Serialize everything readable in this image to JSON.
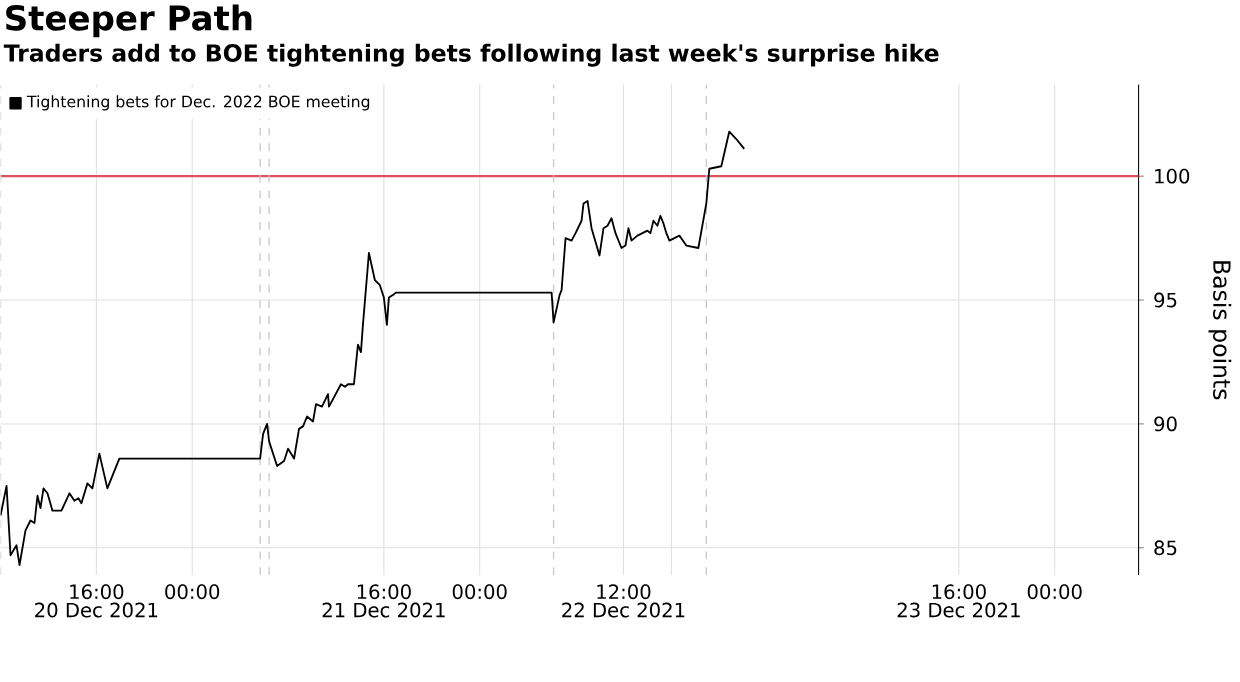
{
  "chart_data": {
    "type": "line",
    "title": "Steeper Path",
    "subtitle": "Traders add to BOE tightening bets following last week's surprise hike",
    "ylabel": "Basis points",
    "series": [
      {
        "name": "Tightening bets for Dec. 2022 BOE meeting",
        "color": "#000000",
        "x": [
          "2021-12-20T08:00",
          "2021-12-20T08:30",
          "2021-12-20T08:50",
          "2021-12-20T09:20",
          "2021-12-20T09:35",
          "2021-12-20T10:05",
          "2021-12-20T10:30",
          "2021-12-20T10:50",
          "2021-12-20T11:05",
          "2021-12-20T11:20",
          "2021-12-20T11:35",
          "2021-12-20T11:55",
          "2021-12-20T12:20",
          "2021-12-20T13:05",
          "2021-12-20T13:45",
          "2021-12-20T14:10",
          "2021-12-20T14:30",
          "2021-12-20T14:45",
          "2021-12-20T15:15",
          "2021-12-20T15:40",
          "2021-12-20T16:15",
          "2021-12-20T16:55",
          "2021-12-20T17:55",
          "2021-12-21T05:40",
          "2021-12-21T05:55",
          "2021-12-21T06:15",
          "2021-12-21T06:25",
          "2021-12-21T07:05",
          "2021-12-21T07:40",
          "2021-12-21T08:00",
          "2021-12-21T08:30",
          "2021-12-21T08:55",
          "2021-12-21T09:15",
          "2021-12-21T09:35",
          "2021-12-21T10:05",
          "2021-12-21T10:20",
          "2021-12-21T10:50",
          "2021-12-21T11:20",
          "2021-12-21T11:25",
          "2021-12-21T12:25",
          "2021-12-21T12:45",
          "2021-12-21T13:00",
          "2021-12-21T13:30",
          "2021-12-21T13:50",
          "2021-12-21T14:05",
          "2021-12-21T14:15",
          "2021-12-21T14:45",
          "2021-12-21T15:15",
          "2021-12-21T15:40",
          "2021-12-21T16:00",
          "2021-12-21T16:15",
          "2021-12-21T16:25",
          "2021-12-21T16:45",
          "2021-12-21T17:00",
          "2021-12-22T06:00",
          "2021-12-22T06:10",
          "2021-12-22T06:40",
          "2021-12-22T06:50",
          "2021-12-22T07:10",
          "2021-12-22T07:40",
          "2021-12-22T08:00",
          "2021-12-22T08:30",
          "2021-12-22T08:40",
          "2021-12-22T09:00",
          "2021-12-22T09:20",
          "2021-12-22T10:00",
          "2021-12-22T10:20",
          "2021-12-22T10:40",
          "2021-12-22T11:00",
          "2021-12-22T11:20",
          "2021-12-22T11:50",
          "2021-12-22T12:10",
          "2021-12-22T12:25",
          "2021-12-22T12:40",
          "2021-12-22T13:10",
          "2021-12-22T13:35",
          "2021-12-22T14:00",
          "2021-12-22T14:15",
          "2021-12-22T14:30",
          "2021-12-22T14:50",
          "2021-12-22T15:05",
          "2021-12-22T15:20",
          "2021-12-22T15:35",
          "2021-12-22T15:50",
          "2021-12-22T16:40",
          "2021-12-22T17:15",
          "2021-12-22T18:15",
          "2021-12-22T18:55",
          "2021-12-22T19:10",
          "2021-12-22T20:10",
          "2021-12-22T20:50",
          "2021-12-22T21:25",
          "2021-12-22T22:05"
        ],
        "values": [
          86.3,
          87.5,
          84.7,
          85.1,
          84.3,
          85.7,
          86.1,
          86.0,
          87.1,
          86.6,
          87.4,
          87.2,
          86.5,
          86.5,
          87.2,
          86.9,
          87.0,
          86.8,
          87.6,
          87.4,
          88.8,
          87.4,
          88.6,
          88.6,
          89.6,
          90.0,
          89.3,
          88.3,
          88.5,
          89.0,
          88.6,
          89.8,
          89.9,
          90.3,
          90.1,
          90.8,
          90.7,
          91.2,
          90.7,
          91.6,
          91.5,
          91.6,
          91.6,
          93.2,
          92.9,
          94.0,
          96.9,
          95.8,
          95.6,
          95.1,
          94.0,
          95.1,
          95.2,
          95.3,
          95.3,
          94.1,
          95.2,
          95.4,
          97.5,
          97.4,
          97.7,
          98.2,
          98.9,
          99.0,
          97.9,
          96.8,
          97.9,
          98.0,
          98.3,
          97.7,
          97.1,
          97.2,
          97.9,
          97.4,
          97.6,
          97.7,
          97.8,
          97.7,
          98.2,
          98.0,
          98.4,
          98.1,
          97.7,
          97.4,
          97.6,
          97.2,
          97.1,
          98.9,
          100.3,
          100.4,
          101.8,
          101.5,
          101.1
        ]
      }
    ],
    "xlim": [
      "2021-12-20T08:00",
      "2021-12-24T07:00"
    ],
    "ylim": [
      83.9,
      103.7
    ],
    "xticks": [
      {
        "value": "2021-12-20T16:00",
        "label": "16:00"
      },
      {
        "value": "2021-12-21T00:00",
        "label": "00:00"
      },
      {
        "value": "2021-12-21T16:00",
        "label": "16:00"
      },
      {
        "value": "2021-12-22T00:00",
        "label": "00:00"
      },
      {
        "value": "2021-12-22T12:00",
        "label": "12:00"
      },
      {
        "value": "2021-12-22T16:00",
        "label": null
      },
      {
        "value": "2021-12-23T16:00",
        "label": "16:00"
      },
      {
        "value": "2021-12-24T00:00",
        "label": "00:00"
      }
    ],
    "x2lim": [
      "2021-12-20T08:00",
      "2021-12-24T07:00"
    ],
    "x2ticks": [
      {
        "value": "2021-12-20T16:00",
        "label": "20 Dec 2021"
      },
      {
        "value": "2021-12-21T16:00",
        "label": "21 Dec 2021"
      },
      {
        "value": "2021-12-22T12:00",
        "label": "22 Dec 2021"
      },
      {
        "value": "2021-12-23T16:00",
        "label": "23 Dec 2021"
      }
    ],
    "yticks": [
      85,
      90,
      95,
      100
    ],
    "ref_lines": [
      {
        "axis": "y",
        "value": 100,
        "color": "#e0525e",
        "line_style": "solid"
      },
      {
        "axis": "x",
        "value": "2021-12-20T08:00",
        "color": "#c8c8c8",
        "line_style": "dashed"
      },
      {
        "axis": "x",
        "value": "2021-12-21T05:40",
        "color": "#c8c8c8",
        "line_style": "dashed"
      },
      {
        "axis": "x",
        "value": "2021-12-21T06:25",
        "color": "#c8c8c8",
        "line_style": "dashed"
      },
      {
        "axis": "x",
        "value": "2021-12-22T06:10",
        "color": "#c8c8c8",
        "line_style": "dashed"
      },
      {
        "axis": "x",
        "value": "2021-12-22T18:55",
        "color": "#c8c8c8",
        "line_style": "dashed"
      }
    ],
    "grid": true,
    "legend": "top left",
    "marker": "none",
    "line_style": "solid"
  }
}
